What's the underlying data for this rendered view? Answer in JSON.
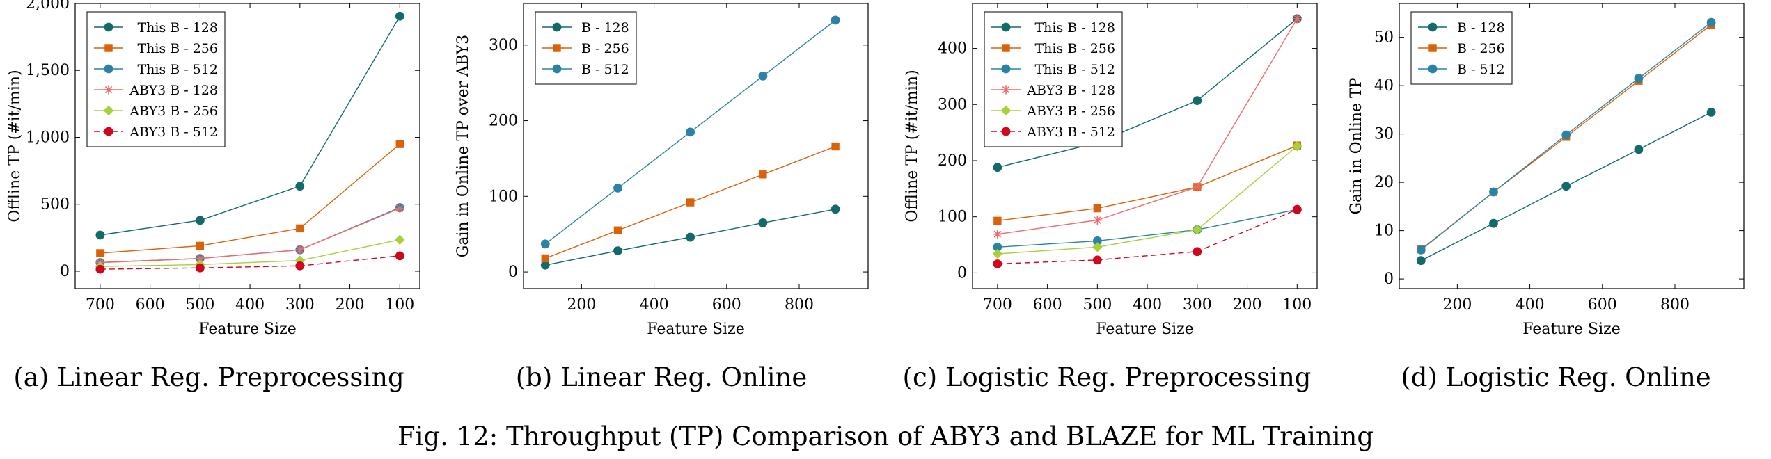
{
  "colors": {
    "teal_dark": "#126a6a",
    "orange": "#d9620a",
    "blue_teal": "#2b83a3",
    "red_light": "#f06a6a",
    "yellow_green": "#a6d13a",
    "red": "#d1061e"
  },
  "figure_caption": "Fig. 12: Throughput (TP) Comparison of ABY3 and BLAZE for ML Training",
  "chart_data": [
    {
      "type": "line",
      "caption": "(a) Linear Reg. Preprocessing",
      "xlabel": "Feature Size",
      "ylabel": "Offline TP (#it/min)",
      "xlim": [
        750,
        60
      ],
      "ylim": [
        -130,
        2000
      ],
      "xticks": [
        700,
        600,
        500,
        400,
        300,
        200,
        100
      ],
      "yticks": [
        0,
        500,
        1000,
        1500,
        2000
      ],
      "ytick_labels": [
        "0",
        "500",
        "1,000",
        "1,500",
        "2,000"
      ],
      "x": [
        700,
        500,
        300,
        100
      ],
      "legend_position": "top-left",
      "series": [
        {
          "name": "This B - 128",
          "color": "#126a6a",
          "marker": "circle",
          "dash": "",
          "values": [
            270,
            380,
            635,
            1905
          ]
        },
        {
          "name": "This B - 256",
          "color": "#d9620a",
          "marker": "square",
          "dash": "",
          "values": [
            135,
            190,
            320,
            950
          ]
        },
        {
          "name": "This B - 512",
          "color": "#2b83a3",
          "marker": "circle",
          "dash": "",
          "values": [
            65,
            95,
            160,
            475
          ]
        },
        {
          "name": "ABY3 B - 128",
          "color": "#f06a6a",
          "marker": "star",
          "dash": "",
          "values": [
            65,
            95,
            160,
            470
          ]
        },
        {
          "name": "ABY3 B - 256",
          "color": "#a6d13a",
          "marker": "diamond",
          "dash": "",
          "values": [
            35,
            50,
            80,
            235
          ]
        },
        {
          "name": "ABY3 B - 512",
          "color": "#d1061e",
          "marker": "circle",
          "dash": "8,5",
          "values": [
            15,
            25,
            40,
            115
          ]
        }
      ]
    },
    {
      "type": "line",
      "caption": "(b) Linear Reg. Online",
      "xlabel": "Feature Size",
      "ylabel": "Gain in Online TP over ABY3",
      "xlim": [
        40,
        990
      ],
      "ylim": [
        -22,
        355
      ],
      "xticks": [
        200,
        400,
        600,
        800
      ],
      "yticks": [
        0,
        100,
        200,
        300
      ],
      "ytick_labels": [
        "0",
        "100",
        "200",
        "300"
      ],
      "x": [
        100,
        300,
        500,
        700,
        900
      ],
      "legend_position": "top-left",
      "series": [
        {
          "name": "B - 128",
          "color": "#126a6a",
          "marker": "circle",
          "dash": "",
          "values": [
            9,
            28,
            46,
            65,
            83
          ]
        },
        {
          "name": "B - 256",
          "color": "#d9620a",
          "marker": "square",
          "dash": "",
          "values": [
            18,
            55,
            92,
            129,
            166
          ]
        },
        {
          "name": "B - 512",
          "color": "#2b83a3",
          "marker": "circle",
          "dash": "",
          "values": [
            37,
            111,
            185,
            259,
            333
          ]
        }
      ]
    },
    {
      "type": "line",
      "caption": "(c) Logistic Reg. Preprocessing",
      "xlabel": "Feature Size",
      "ylabel": "Offline TP (#it/min)",
      "xlim": [
        750,
        60
      ],
      "ylim": [
        -28,
        480
      ],
      "xticks": [
        700,
        600,
        500,
        400,
        300,
        200,
        100
      ],
      "yticks": [
        0,
        100,
        200,
        300,
        400
      ],
      "ytick_labels": [
        "0",
        "100",
        "200",
        "300",
        "400"
      ],
      "x": [
        700,
        500,
        300,
        100
      ],
      "legend_position": "top-left",
      "series": [
        {
          "name": "This B - 128",
          "color": "#126a6a",
          "marker": "circle",
          "dash": "",
          "values": [
            188,
            232,
            307,
            453
          ]
        },
        {
          "name": "This B - 256",
          "color": "#d9620a",
          "marker": "square",
          "dash": "",
          "values": [
            93,
            115,
            153,
            227
          ]
        },
        {
          "name": "This B - 512",
          "color": "#2b83a3",
          "marker": "circle",
          "dash": "",
          "values": [
            46,
            57,
            77,
            113
          ]
        },
        {
          "name": "ABY3 B - 128",
          "color": "#f06a6a",
          "marker": "star",
          "dash": "",
          "values": [
            69,
            94,
            153,
            453
          ]
        },
        {
          "name": "ABY3 B - 256",
          "color": "#a6d13a",
          "marker": "diamond",
          "dash": "",
          "values": [
            34,
            46,
            77,
            226
          ]
        },
        {
          "name": "ABY3 B - 512",
          "color": "#d1061e",
          "marker": "circle",
          "dash": "8,5",
          "values": [
            16,
            23,
            38,
            113
          ]
        }
      ]
    },
    {
      "type": "line",
      "caption": "(d) Logistic Reg. Online",
      "xlabel": "Feature Size",
      "ylabel": "Gain in Online TP",
      "xlim": [
        40,
        990
      ],
      "ylim": [
        -2,
        57
      ],
      "xticks": [
        200,
        400,
        600,
        800
      ],
      "yticks": [
        0,
        10,
        20,
        30,
        40,
        50
      ],
      "ytick_labels": [
        "0",
        "10",
        "20",
        "30",
        "40",
        "50"
      ],
      "x": [
        100,
        300,
        500,
        700,
        900
      ],
      "legend_position": "top-left",
      "series": [
        {
          "name": "B - 128",
          "color": "#126a6a",
          "marker": "circle",
          "dash": "",
          "values": [
            3.8,
            11.5,
            19.2,
            26.8,
            34.5
          ]
        },
        {
          "name": "B - 256",
          "color": "#d9620a",
          "marker": "square",
          "dash": "",
          "values": [
            6.1,
            18.0,
            29.4,
            41.0,
            52.6
          ]
        },
        {
          "name": "B - 512",
          "color": "#2b83a3",
          "marker": "circle",
          "dash": "",
          "values": [
            6.0,
            18.0,
            29.8,
            41.5,
            53.1
          ]
        }
      ]
    }
  ]
}
